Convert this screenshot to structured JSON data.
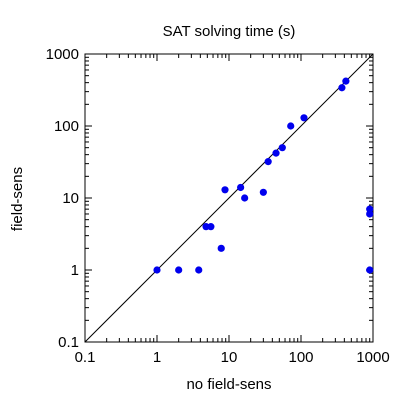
{
  "chart_data": {
    "type": "scatter",
    "title": "SAT solving time (s)",
    "xlabel": "no field-sens",
    "ylabel": "field-sens",
    "xscale": "log",
    "yscale": "log",
    "xlim": [
      0.1,
      1000
    ],
    "ylim": [
      0.1,
      1000
    ],
    "xticks": [
      "0.1",
      "1",
      "10",
      "100",
      "1000"
    ],
    "yticks": [
      "0.1",
      "1",
      "10",
      "100",
      "1000"
    ],
    "grid": false,
    "legend": "none",
    "diagonal": true,
    "colors": {
      "points": "#0000ee",
      "axes": "#000000",
      "diagonal": "#000000"
    },
    "points": [
      {
        "x": 1,
        "y": 1
      },
      {
        "x": 2,
        "y": 1
      },
      {
        "x": 3.8,
        "y": 1
      },
      {
        "x": 4.8,
        "y": 4
      },
      {
        "x": 5.6,
        "y": 4
      },
      {
        "x": 7.8,
        "y": 2
      },
      {
        "x": 8.8,
        "y": 13
      },
      {
        "x": 14.5,
        "y": 14
      },
      {
        "x": 16.5,
        "y": 10
      },
      {
        "x": 30,
        "y": 12
      },
      {
        "x": 35,
        "y": 32
      },
      {
        "x": 45,
        "y": 42
      },
      {
        "x": 55,
        "y": 50
      },
      {
        "x": 72,
        "y": 100
      },
      {
        "x": 110,
        "y": 130
      },
      {
        "x": 370,
        "y": 340
      },
      {
        "x": 420,
        "y": 420
      },
      {
        "x": 900,
        "y": 7
      },
      {
        "x": 900,
        "y": 6
      },
      {
        "x": 900,
        "y": 1
      }
    ]
  }
}
